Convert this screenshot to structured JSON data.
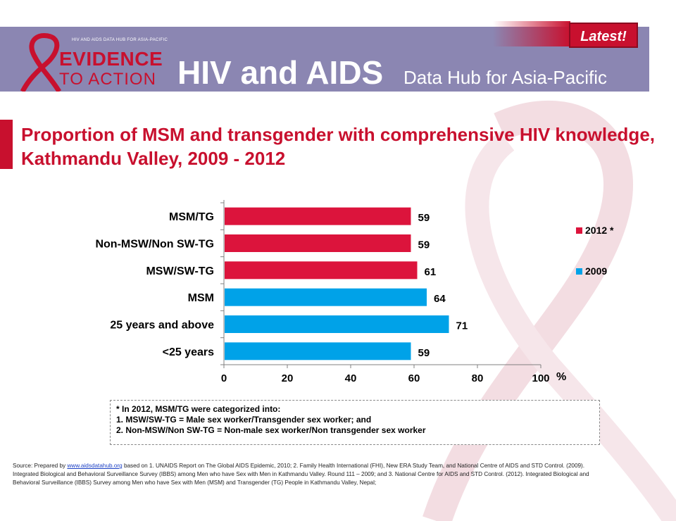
{
  "header": {
    "logo_caption": "HIV AND AIDS DATA HUB FOR ASIA-PACIFIC",
    "logo_line1": "EVIDENCE",
    "logo_line2": "TO ACTION",
    "title": "HIV and AIDS",
    "subtitle": "Data Hub for Asia-Pacific",
    "latest_label": "Latest!"
  },
  "slide": {
    "title": "Proportion of MSM and transgender with comprehensive HIV knowledge, Kathmandu Valley, 2009 - 2012"
  },
  "colors": {
    "series_2012": "#dc143c",
    "series_2009": "#00a2e8",
    "accent": "#c8102e",
    "header_bg": "#8b86b2"
  },
  "chart_data": {
    "type": "bar",
    "orientation": "horizontal",
    "categories": [
      "MSM/TG",
      "Non-MSW/Non SW-TG",
      "MSW/SW-TG",
      "MSM",
      "25 years and above",
      "<25 years"
    ],
    "bars": [
      {
        "category": "MSM/TG",
        "value": 59,
        "series": "2012 *"
      },
      {
        "category": "Non-MSW/Non SW-TG",
        "value": 59,
        "series": "2012 *"
      },
      {
        "category": "MSW/SW-TG",
        "value": 61,
        "series": "2012 *"
      },
      {
        "category": "MSM",
        "value": 64,
        "series": "2009"
      },
      {
        "category": "25 years and above",
        "value": 71,
        "series": "2009"
      },
      {
        "category": "<25 years",
        "value": 59,
        "series": "2009"
      }
    ],
    "series": [
      {
        "name": "2012 *",
        "color": "#dc143c"
      },
      {
        "name": "2009",
        "color": "#00a2e8"
      }
    ],
    "xlim": [
      0,
      100
    ],
    "xticks": [
      "0",
      "20",
      "40",
      "60",
      "80",
      "100"
    ],
    "xlabel": "%",
    "legend_position": "right",
    "grid": false
  },
  "note": {
    "line1": "* In 2012, MSM/TG were categorized into:",
    "line2": "1. MSW/SW-TG = Male sex worker/Transgender sex worker; and",
    "line3": "2. Non-MSW/Non SW-TG = Non-male sex worker/Non transgender sex worker"
  },
  "source": {
    "prefix": "Source: Prepared by ",
    "link": "www.aidsdatahub.org",
    "text": " based on 1. UNAIDS Report on The Global AIDS Epidemic, 2010; 2. Family Health International (FHI), New ERA Study Team, and National Centre of AIDS and STD Control. (2009). Integrated Biological and Behavioral Surveillance Survey (IBBS) among Men who have Sex with Men in Kathmandu Valley. Round 111 – 2009; and 3. National Centre for AIDS and STD Control. (2012). Integrated Biological and Behavioral Surveillance (IBBS) Survey among Men who have Sex with Men (MSM) and Transgender (TG) People in Kathmandu Valley, Nepal;"
  }
}
